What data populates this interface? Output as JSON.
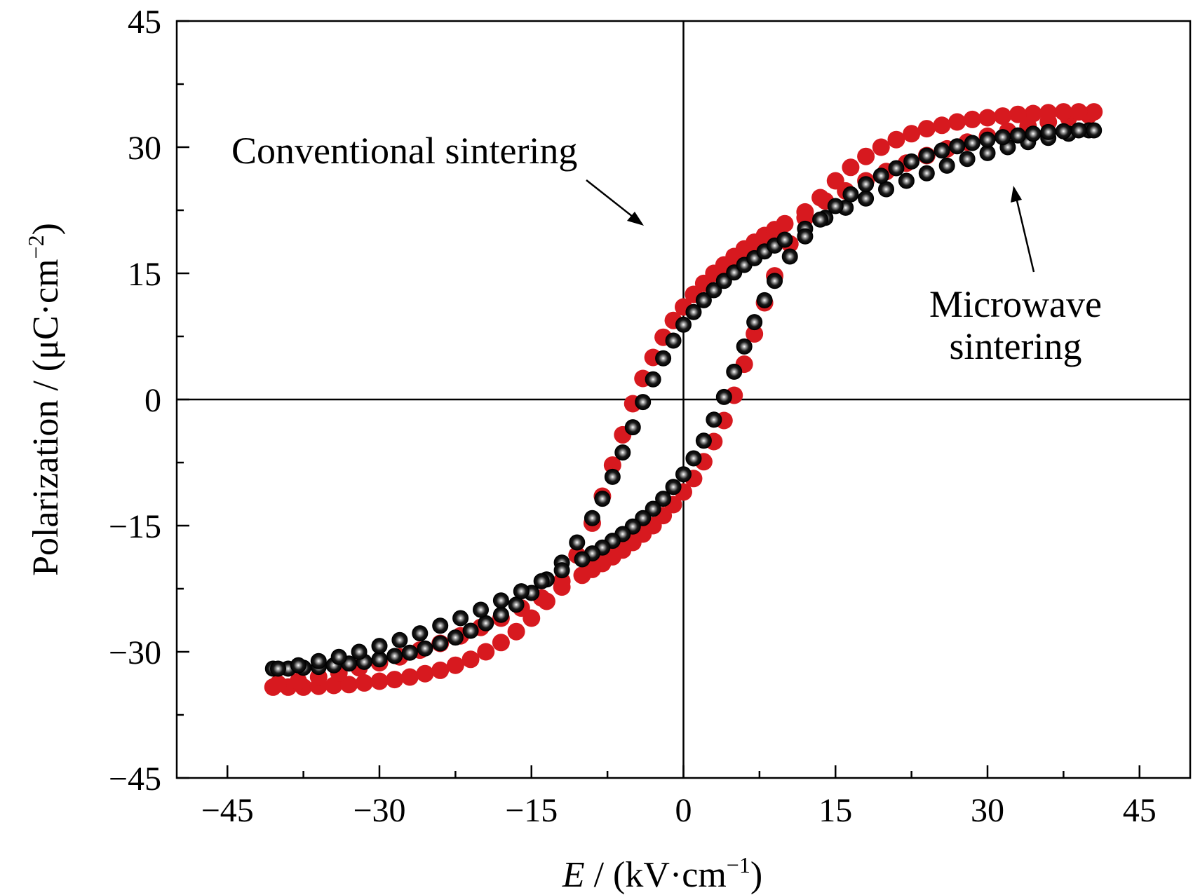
{
  "chart_data": {
    "type": "scatter",
    "xlabel": {
      "italic": "E",
      "rest": " / (kV·cm",
      "sup": "−1",
      "close": ")"
    },
    "ylabel": {
      "main": "Polarization / (μC·cm",
      "sup": "−2",
      "close": ")"
    },
    "xlim": [
      -50,
      50
    ],
    "ylim": [
      -45,
      45
    ],
    "xticks": [
      -45,
      -30,
      -15,
      0,
      15,
      30,
      45
    ],
    "yticks": [
      -45,
      -30,
      -15,
      0,
      15,
      30,
      45
    ],
    "xtick_labels": [
      "−45",
      "−30",
      "−15",
      "0",
      "15",
      "30",
      "45"
    ],
    "ytick_labels": [
      "−45",
      "−30",
      "−15",
      "0",
      "15",
      "30",
      "45"
    ],
    "grid": false,
    "zero_lines": true,
    "annotations": [
      {
        "lines": [
          "Conventional sintering"
        ],
        "series": "conventional"
      },
      {
        "lines": [
          "Microwave",
          "sintering"
        ],
        "series": "microwave"
      }
    ],
    "series": [
      {
        "key": "conventional",
        "color": "#d7191f",
        "marker": "filled-circle",
        "upper_branch": [
          [
            -40.5,
            -34.2
          ],
          [
            -39,
            -34.2
          ],
          [
            -37.5,
            -34.2
          ],
          [
            -36,
            -34.1
          ],
          [
            -34.5,
            -34
          ],
          [
            -33,
            -33.9
          ],
          [
            -31.5,
            -33.7
          ],
          [
            -30,
            -33.5
          ],
          [
            -28.5,
            -33.3
          ],
          [
            -27,
            -33
          ],
          [
            -25.5,
            -32.6
          ],
          [
            -24,
            -32.2
          ],
          [
            -22.5,
            -31.6
          ],
          [
            -21,
            -30.9
          ],
          [
            -19.5,
            -30
          ],
          [
            -18,
            -28.9
          ],
          [
            -16.5,
            -27.6
          ],
          [
            -15,
            -26
          ],
          [
            -13.5,
            -24
          ],
          [
            -12,
            -21.6
          ],
          [
            -10.5,
            -18.5
          ],
          [
            -9,
            -14.7
          ],
          [
            -8,
            -11.5
          ],
          [
            -7,
            -7.8
          ],
          [
            -6,
            -4.2
          ],
          [
            -5,
            -0.5
          ],
          [
            -4,
            2.5
          ],
          [
            -3,
            5
          ],
          [
            -2,
            7.4
          ],
          [
            -1,
            9.4
          ],
          [
            0,
            11
          ],
          [
            1,
            12.5
          ],
          [
            2,
            13.8
          ],
          [
            3,
            15
          ],
          [
            4,
            16
          ],
          [
            5,
            17
          ],
          [
            6,
            17.9
          ],
          [
            7,
            18.7
          ],
          [
            8,
            19.5
          ],
          [
            9,
            20.2
          ],
          [
            10,
            20.9
          ],
          [
            12,
            22.3
          ],
          [
            14,
            23.6
          ],
          [
            16,
            24.8
          ],
          [
            18,
            26
          ],
          [
            20,
            27.1
          ],
          [
            22,
            28.1
          ],
          [
            24,
            29
          ],
          [
            26,
            29.8
          ],
          [
            28,
            30.6
          ],
          [
            30,
            31.3
          ],
          [
            32,
            31.9
          ],
          [
            34,
            32.5
          ],
          [
            36,
            33
          ],
          [
            38,
            33.5
          ],
          [
            40,
            33.8
          ]
        ],
        "lower_branch": [
          [
            40.5,
            34.2
          ],
          [
            39,
            34.2
          ],
          [
            37.5,
            34.2
          ],
          [
            36,
            34.1
          ],
          [
            34.5,
            34
          ],
          [
            33,
            33.9
          ],
          [
            31.5,
            33.7
          ],
          [
            30,
            33.5
          ],
          [
            28.5,
            33.3
          ],
          [
            27,
            33
          ],
          [
            25.5,
            32.6
          ],
          [
            24,
            32.2
          ],
          [
            22.5,
            31.6
          ],
          [
            21,
            30.9
          ],
          [
            19.5,
            30
          ],
          [
            18,
            28.9
          ],
          [
            16.5,
            27.6
          ],
          [
            15,
            26
          ],
          [
            13.5,
            24
          ],
          [
            12,
            21.6
          ],
          [
            10.5,
            18.5
          ],
          [
            9,
            14.7
          ],
          [
            8,
            11.5
          ],
          [
            7,
            7.8
          ],
          [
            6,
            4.2
          ],
          [
            5,
            0.5
          ],
          [
            4,
            -2.5
          ],
          [
            3,
            -5
          ],
          [
            2,
            -7.4
          ],
          [
            1,
            -9.4
          ],
          [
            0,
            -11
          ],
          [
            -1,
            -12.5
          ],
          [
            -2,
            -13.8
          ],
          [
            -3,
            -15
          ],
          [
            -4,
            -16
          ],
          [
            -5,
            -17
          ],
          [
            -6,
            -17.9
          ],
          [
            -7,
            -18.7
          ],
          [
            -8,
            -19.5
          ],
          [
            -9,
            -20.2
          ],
          [
            -10,
            -20.9
          ],
          [
            -12,
            -22.3
          ],
          [
            -14,
            -23.6
          ],
          [
            -16,
            -24.8
          ],
          [
            -18,
            -26
          ],
          [
            -20,
            -27.1
          ],
          [
            -22,
            -28.1
          ],
          [
            -24,
            -29
          ],
          [
            -26,
            -29.8
          ],
          [
            -28,
            -30.6
          ],
          [
            -30,
            -31.3
          ],
          [
            -32,
            -31.9
          ],
          [
            -34,
            -32.5
          ],
          [
            -36,
            -33
          ],
          [
            -38,
            -33.5
          ],
          [
            -40,
            -33.8
          ]
        ]
      },
      {
        "key": "microwave",
        "color": "#111111",
        "marker": "sphere",
        "upper_branch": [
          [
            -40.5,
            -32
          ],
          [
            -39,
            -32
          ],
          [
            -37.5,
            -31.9
          ],
          [
            -36,
            -31.8
          ],
          [
            -34.5,
            -31.6
          ],
          [
            -33,
            -31.4
          ],
          [
            -31.5,
            -31.2
          ],
          [
            -30,
            -30.9
          ],
          [
            -28.5,
            -30.5
          ],
          [
            -27,
            -30.1
          ],
          [
            -25.5,
            -29.6
          ],
          [
            -24,
            -29
          ],
          [
            -22.5,
            -28.3
          ],
          [
            -21,
            -27.5
          ],
          [
            -19.5,
            -26.6
          ],
          [
            -18,
            -25.6
          ],
          [
            -16.5,
            -24.4
          ],
          [
            -15,
            -23
          ],
          [
            -13.5,
            -21.4
          ],
          [
            -12,
            -19.4
          ],
          [
            -10.5,
            -17
          ],
          [
            -9,
            -14.1
          ],
          [
            -8,
            -11.8
          ],
          [
            -7,
            -9.2
          ],
          [
            -6,
            -6.3
          ],
          [
            -5,
            -3.3
          ],
          [
            -4,
            -0.3
          ],
          [
            -3,
            2.4
          ],
          [
            -2,
            4.9
          ],
          [
            -1,
            7
          ],
          [
            0,
            8.9
          ],
          [
            1,
            10.4
          ],
          [
            2,
            11.8
          ],
          [
            3,
            13
          ],
          [
            4,
            14.1
          ],
          [
            5,
            15.1
          ],
          [
            6,
            16
          ],
          [
            7,
            16.8
          ],
          [
            8,
            17.6
          ],
          [
            9,
            18.3
          ],
          [
            10,
            19
          ],
          [
            12,
            20.3
          ],
          [
            14,
            21.6
          ],
          [
            16,
            22.8
          ],
          [
            18,
            23.9
          ],
          [
            20,
            25
          ],
          [
            22,
            26
          ],
          [
            24,
            26.9
          ],
          [
            26,
            27.8
          ],
          [
            28,
            28.6
          ],
          [
            30,
            29.3
          ],
          [
            32,
            30
          ],
          [
            34,
            30.6
          ],
          [
            36,
            31.1
          ],
          [
            38,
            31.6
          ],
          [
            40,
            32
          ]
        ],
        "lower_branch": [
          [
            40.5,
            32
          ],
          [
            39,
            32
          ],
          [
            37.5,
            31.9
          ],
          [
            36,
            31.8
          ],
          [
            34.5,
            31.6
          ],
          [
            33,
            31.4
          ],
          [
            31.5,
            31.2
          ],
          [
            30,
            30.9
          ],
          [
            28.5,
            30.5
          ],
          [
            27,
            30.1
          ],
          [
            25.5,
            29.6
          ],
          [
            24,
            29
          ],
          [
            22.5,
            28.3
          ],
          [
            21,
            27.5
          ],
          [
            19.5,
            26.6
          ],
          [
            18,
            25.6
          ],
          [
            16.5,
            24.4
          ],
          [
            15,
            23
          ],
          [
            13.5,
            21.4
          ],
          [
            12,
            19.4
          ],
          [
            10.5,
            17
          ],
          [
            9,
            14.1
          ],
          [
            8,
            11.8
          ],
          [
            7,
            9.2
          ],
          [
            6,
            6.3
          ],
          [
            5,
            3.3
          ],
          [
            4,
            0.3
          ],
          [
            3,
            -2.4
          ],
          [
            2,
            -4.9
          ],
          [
            1,
            -7
          ],
          [
            0,
            -8.9
          ],
          [
            -1,
            -10.4
          ],
          [
            -2,
            -11.8
          ],
          [
            -3,
            -13
          ],
          [
            -4,
            -14.1
          ],
          [
            -5,
            -15.1
          ],
          [
            -6,
            -16
          ],
          [
            -7,
            -16.8
          ],
          [
            -8,
            -17.6
          ],
          [
            -9,
            -18.3
          ],
          [
            -10,
            -19
          ],
          [
            -12,
            -20.3
          ],
          [
            -14,
            -21.6
          ],
          [
            -16,
            -22.8
          ],
          [
            -18,
            -23.9
          ],
          [
            -20,
            -25
          ],
          [
            -22,
            -26
          ],
          [
            -24,
            -26.9
          ],
          [
            -26,
            -27.8
          ],
          [
            -28,
            -28.6
          ],
          [
            -30,
            -29.3
          ],
          [
            -32,
            -30
          ],
          [
            -34,
            -30.6
          ],
          [
            -36,
            -31.1
          ],
          [
            -38,
            -31.6
          ],
          [
            -40,
            -32
          ]
        ]
      }
    ]
  }
}
